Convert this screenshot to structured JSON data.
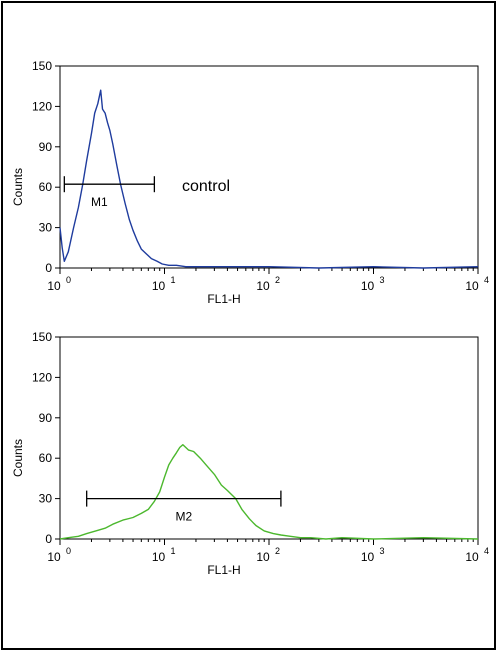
{
  "chart_data": [
    {
      "type": "line",
      "title": "",
      "xlabel": "FL1-H",
      "ylabel": "Counts",
      "x_scale": "log",
      "xlim": [
        1,
        10000
      ],
      "ylim": [
        0,
        150
      ],
      "x_tick_labels": [
        {
          "base": "10",
          "exp": "0"
        },
        {
          "base": "10",
          "exp": "1"
        },
        {
          "base": "10",
          "exp": "2"
        },
        {
          "base": "10",
          "exp": "3"
        },
        {
          "base": "10",
          "exp": "4"
        }
      ],
      "y_ticks": [
        "0",
        "30",
        "60",
        "90",
        "120",
        "150"
      ],
      "grid": false,
      "annotation": "control",
      "marker": {
        "label": "M1",
        "x_start": 1.1,
        "x_end": 8
      },
      "series": [
        {
          "color": "#1f3c9e",
          "x": [
            1,
            1.05,
            1.1,
            1.2,
            1.35,
            1.5,
            1.65,
            1.8,
            2.0,
            2.15,
            2.3,
            2.45,
            2.55,
            2.7,
            2.85,
            3.0,
            3.2,
            3.5,
            3.8,
            4.2,
            4.6,
            5.0,
            5.5,
            6.0,
            6.8,
            7.5,
            8.5,
            9.5,
            11,
            13,
            16,
            20,
            30,
            50,
            100,
            300,
            1000,
            3000,
            10000
          ],
          "y": [
            30,
            15,
            5,
            12,
            30,
            45,
            62,
            80,
            100,
            115,
            122,
            132,
            118,
            115,
            108,
            102,
            92,
            76,
            62,
            48,
            36,
            28,
            20,
            14,
            10,
            7,
            5,
            3,
            2,
            2,
            1,
            1,
            1,
            1,
            1,
            0,
            1,
            0,
            1
          ]
        }
      ]
    },
    {
      "type": "line",
      "title": "",
      "xlabel": "FL1-H",
      "ylabel": "Counts",
      "x_scale": "log",
      "xlim": [
        1,
        10000
      ],
      "ylim": [
        0,
        150
      ],
      "x_tick_labels": [
        {
          "base": "10",
          "exp": "0"
        },
        {
          "base": "10",
          "exp": "1"
        },
        {
          "base": "10",
          "exp": "2"
        },
        {
          "base": "10",
          "exp": "3"
        },
        {
          "base": "10",
          "exp": "4"
        }
      ],
      "y_ticks": [
        "0",
        "30",
        "60",
        "90",
        "120",
        "150"
      ],
      "grid": false,
      "marker": {
        "label": "M2",
        "x_start": 1.8,
        "x_end": 130
      },
      "series": [
        {
          "color": "#4cb82e",
          "x": [
            1,
            1.2,
            1.5,
            1.8,
            2.2,
            2.7,
            3.2,
            4,
            5,
            6,
            7,
            8,
            9,
            10,
            11,
            12,
            13,
            14,
            15,
            17,
            19,
            22,
            25,
            30,
            35,
            40,
            48,
            55,
            65,
            75,
            90,
            110,
            130,
            160,
            200,
            250,
            350,
            500,
            1000,
            3000,
            10000
          ],
          "y": [
            0,
            1,
            2,
            4,
            6,
            8,
            11,
            14,
            16,
            19,
            22,
            28,
            35,
            46,
            55,
            60,
            64,
            68,
            70,
            66,
            65,
            60,
            55,
            48,
            40,
            36,
            30,
            22,
            15,
            10,
            6,
            4,
            3,
            2,
            1,
            1,
            0,
            1,
            0,
            1,
            0
          ]
        }
      ]
    }
  ]
}
